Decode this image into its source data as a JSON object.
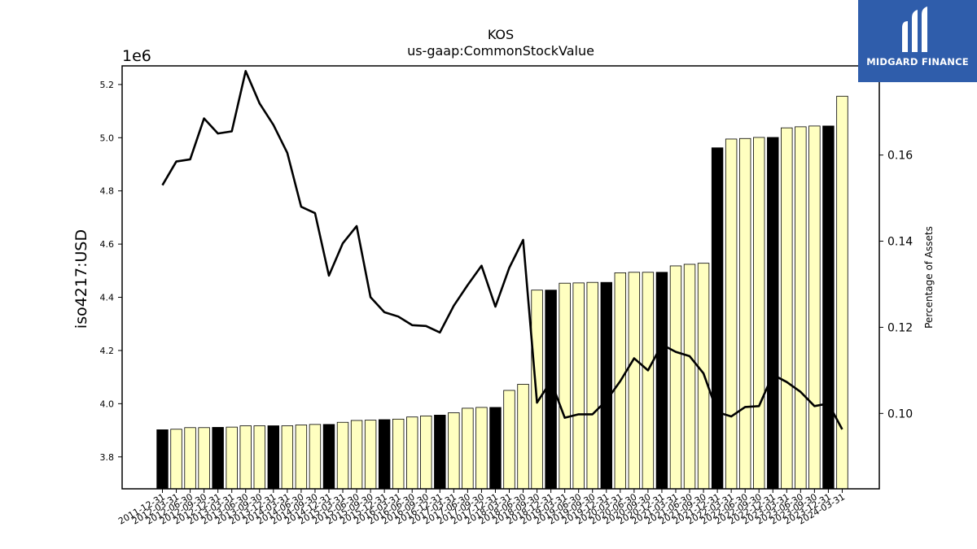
{
  "chart_data": {
    "type": "bar",
    "title": "KOS",
    "subtitle": "us-gaap:CommonStockValue",
    "ylabel": "iso4217:USD",
    "y_offset_label": "1e6",
    "y2label": "Percentage of Assets",
    "ylim": [
      3.68,
      5.27
    ],
    "y2lim": [
      0.0825,
      0.1807
    ],
    "yticks": [
      "3.8",
      "4.0",
      "4.2",
      "4.4",
      "4.6",
      "4.8",
      "5.0",
      "5.2"
    ],
    "y2ticks": [
      "0.10",
      "0.12",
      "0.14",
      "0.16"
    ],
    "grid": false,
    "colors": {
      "annual_bar": "#000000",
      "quarter_bar": "#ffffc0",
      "bar_edge": "#000000",
      "line": "#000000"
    },
    "categories": [
      "2011-12-31",
      "2012-03-31",
      "2012-06-30",
      "2012-09-30",
      "2012-12-31",
      "2013-03-31",
      "2013-06-30",
      "2013-09-30",
      "2013-12-31",
      "2014-03-31",
      "2014-06-30",
      "2014-09-30",
      "2014-12-31",
      "2015-03-31",
      "2015-06-30",
      "2015-09-30",
      "2015-12-31",
      "2016-03-31",
      "2016-06-30",
      "2016-09-30",
      "2016-12-31",
      "2017-03-31",
      "2017-06-30",
      "2017-09-30",
      "2017-12-31",
      "2018-03-31",
      "2018-06-30",
      "2018-09-30",
      "2018-12-31",
      "2019-03-31",
      "2019-06-30",
      "2019-09-30",
      "2019-12-31",
      "2020-03-31",
      "2020-06-30",
      "2020-09-30",
      "2020-12-31",
      "2021-03-31",
      "2021-06-30",
      "2021-09-30",
      "2021-12-31",
      "2022-03-31",
      "2022-06-30",
      "2022-09-30",
      "2022-12-31",
      "2023-03-31",
      "2023-06-30",
      "2023-09-30",
      "2023-12-31",
      "2024-03-31"
    ],
    "series": [
      {
        "values": [
          3.902,
          3.904,
          3.91,
          3.91,
          3.911,
          3.912,
          3.917,
          3.917,
          3.917,
          3.917,
          3.92,
          3.922,
          3.922,
          3.93,
          3.937,
          3.938,
          3.94,
          3.942,
          3.95,
          3.954,
          3.957,
          3.966,
          3.983,
          3.986,
          3.986,
          4.05,
          4.073,
          4.427,
          4.427,
          4.453,
          4.454,
          4.456,
          4.456,
          4.492,
          4.494,
          4.494,
          4.494,
          4.518,
          4.524,
          4.528,
          4.962,
          4.995,
          4.997,
          5.001,
          5.001,
          5.037,
          5.041,
          5.044,
          5.044,
          5.156
        ],
        "annual": [
          true,
          false,
          false,
          false,
          true,
          false,
          false,
          false,
          true,
          false,
          false,
          false,
          true,
          false,
          false,
          false,
          true,
          false,
          false,
          false,
          true,
          false,
          false,
          false,
          true,
          false,
          false,
          false,
          true,
          false,
          false,
          false,
          true,
          false,
          false,
          false,
          true,
          false,
          false,
          false,
          true,
          false,
          false,
          false,
          true,
          false,
          false,
          false,
          true,
          false
        ]
      },
      {
        "axis": "right",
        "values": [
          0.153,
          0.1585,
          0.159,
          0.1685,
          0.165,
          0.1655,
          0.1795,
          0.172,
          0.167,
          0.1605,
          0.148,
          0.1465,
          0.132,
          0.1395,
          0.1435,
          0.127,
          0.1235,
          0.1225,
          0.1205,
          0.1203,
          0.1188,
          0.125,
          0.1298,
          0.1343,
          0.1248,
          0.1338,
          0.1403,
          0.1025,
          0.1075,
          0.099,
          0.0998,
          0.0998,
          0.103,
          0.1075,
          0.1128,
          0.11,
          0.116,
          0.1143,
          0.1133,
          0.1093,
          0.1003,
          0.0993,
          0.1015,
          0.1017,
          0.109,
          0.1073,
          0.105,
          0.1017,
          0.1023,
          0.0963
        ]
      }
    ]
  },
  "logo": {
    "text": "MIDGARD FINANCE"
  }
}
